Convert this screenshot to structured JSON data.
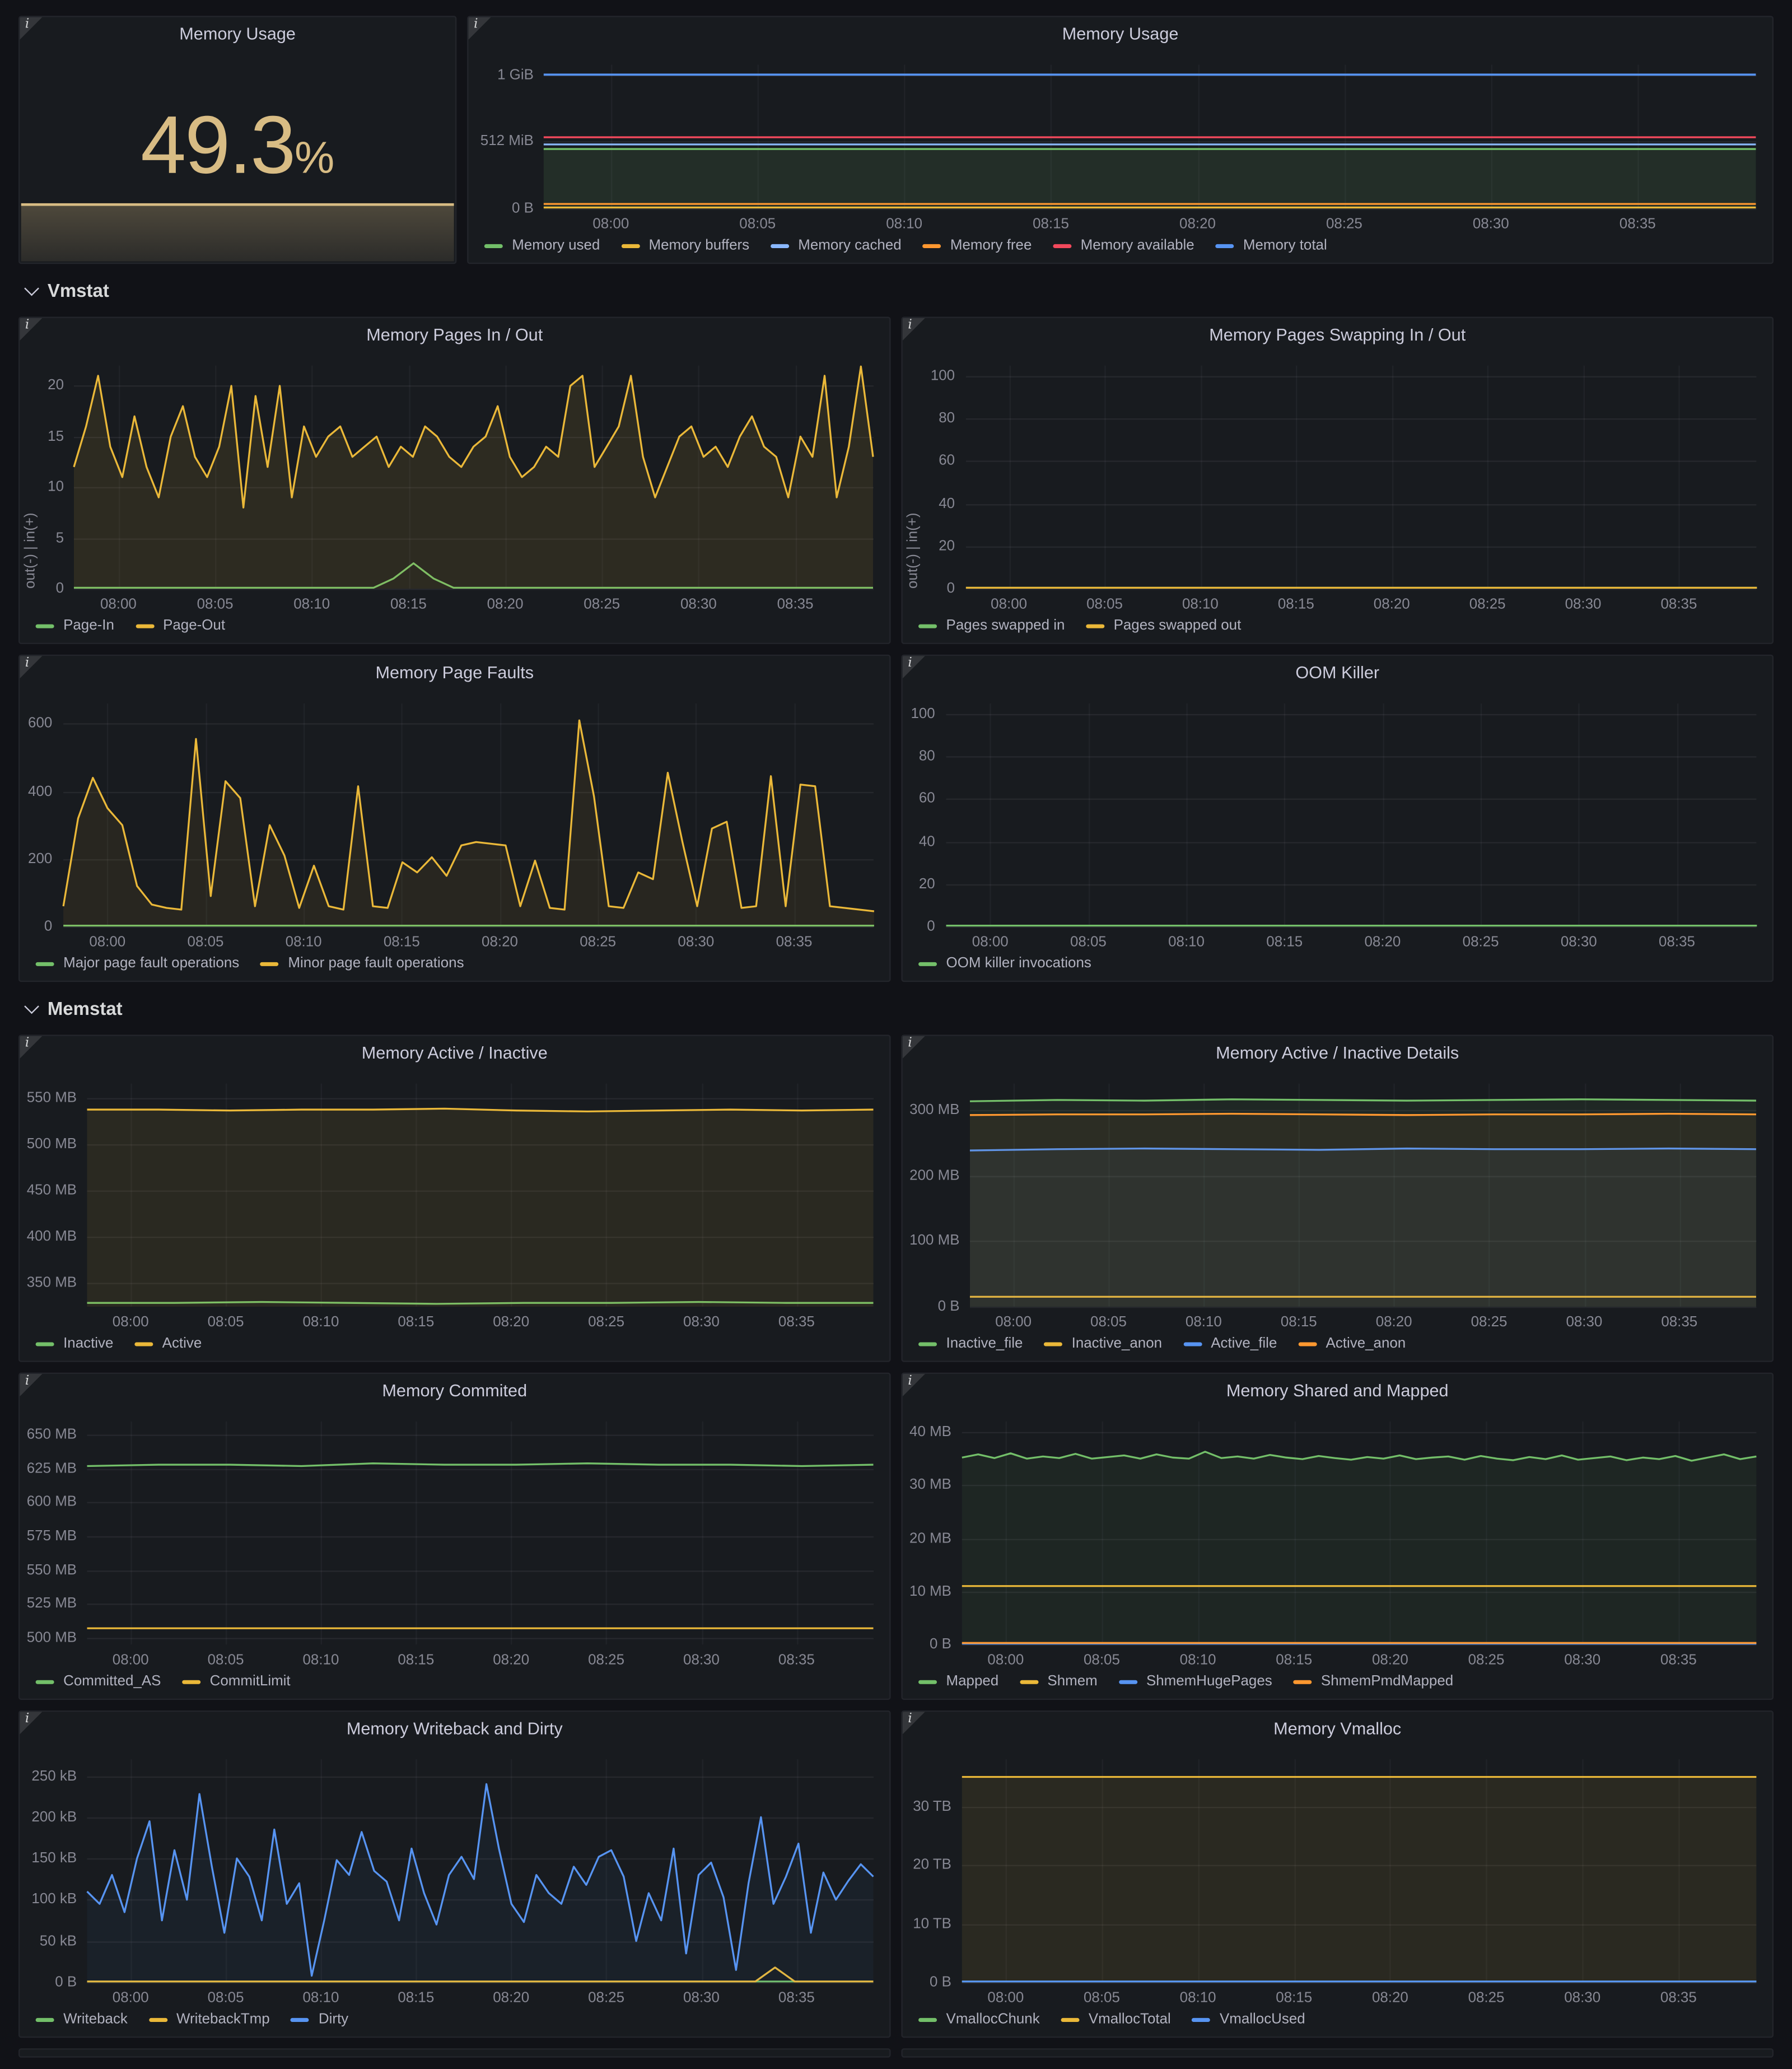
{
  "sections": {
    "vmstat": "Vmstat",
    "memstat": "Memstat"
  },
  "stat": {
    "title": "Memory Usage",
    "value": "49.3",
    "unit": "%",
    "color": "#d8bc84",
    "fraction": 0.493
  },
  "charts": {
    "usage": {
      "title": "Memory Usage",
      "y_min": 0,
      "y_max": 1100,
      "y_ticks": [
        [
          0,
          "0 B"
        ],
        [
          512,
          "512 MiB"
        ],
        [
          1024,
          "1 GiB"
        ]
      ],
      "x_ticks": [
        "08:00",
        "08:05",
        "08:10",
        "08:15",
        "08:20",
        "08:25",
        "08:30",
        "08:35"
      ],
      "series": [
        {
          "name": "Memory used",
          "color": "#73BF69",
          "fill": 0.12,
          "values": [
            455,
            455
          ]
        },
        {
          "name": "Memory buffers",
          "color": "#EAB839",
          "values": [
            8,
            8
          ]
        },
        {
          "name": "Memory cached",
          "color": "#8AB8FF",
          "values": [
            490,
            490
          ]
        },
        {
          "name": "Memory free",
          "color": "#FF9830",
          "values": [
            35,
            35
          ]
        },
        {
          "name": "Memory available",
          "color": "#F2495C",
          "values": [
            545,
            545
          ]
        },
        {
          "name": "Memory total",
          "color": "#5794F2",
          "width": 1.6,
          "values": [
            1024,
            1024
          ]
        }
      ]
    },
    "pages": {
      "title": "Memory Pages In / Out",
      "y_label": "out(-) | in(+)",
      "y_min": 0,
      "y_max": 22,
      "y_ticks": [
        [
          0,
          "0"
        ],
        [
          5,
          "5"
        ],
        [
          10,
          "10"
        ],
        [
          15,
          "15"
        ],
        [
          20,
          "20"
        ]
      ],
      "x_ticks": [
        "08:00",
        "08:05",
        "08:10",
        "08:15",
        "08:20",
        "08:25",
        "08:30",
        "08:35"
      ],
      "series": [
        {
          "name": "Page-In",
          "color": "#73BF69",
          "values": [
            0,
            0,
            0,
            0,
            0,
            0,
            0,
            0,
            0,
            0,
            0,
            0,
            0,
            0,
            0,
            0,
            1,
            2.5,
            1,
            0,
            0,
            0,
            0,
            0,
            0,
            0,
            0,
            0,
            0,
            0,
            0,
            0,
            0,
            0,
            0,
            0,
            0,
            0,
            0,
            0,
            0
          ]
        },
        {
          "name": "Page-Out",
          "color": "#EAB839",
          "fill": 0.1,
          "values": [
            12,
            16,
            21,
            14,
            11,
            17,
            12,
            9,
            15,
            18,
            13,
            11,
            14,
            20,
            8,
            19,
            12,
            20,
            9,
            16,
            13,
            15,
            16,
            13,
            14,
            15,
            12,
            14,
            13,
            16,
            15,
            13,
            12,
            14,
            15,
            18,
            13,
            11,
            12,
            14,
            13,
            20,
            21,
            12,
            14,
            16,
            21,
            13,
            9,
            12,
            15,
            16,
            13,
            14,
            12,
            15,
            17,
            14,
            13,
            9,
            15,
            13,
            21,
            9,
            14,
            22,
            13
          ]
        }
      ]
    },
    "swap": {
      "title": "Memory Pages Swapping In / Out",
      "y_label": "out(-) | in(+)",
      "y_min": 0,
      "y_max": 105,
      "y_ticks": [
        [
          0,
          "0"
        ],
        [
          20,
          "20"
        ],
        [
          40,
          "40"
        ],
        [
          60,
          "60"
        ],
        [
          80,
          "80"
        ],
        [
          100,
          "100"
        ]
      ],
      "x_ticks": [
        "08:00",
        "08:05",
        "08:10",
        "08:15",
        "08:20",
        "08:25",
        "08:30",
        "08:35"
      ],
      "series": [
        {
          "name": "Pages swapped in",
          "color": "#73BF69",
          "values": [
            0,
            0
          ]
        },
        {
          "name": "Pages swapped out",
          "color": "#EAB839",
          "values": [
            0,
            0
          ]
        }
      ]
    },
    "faults": {
      "title": "Memory Page Faults",
      "y_min": 0,
      "y_max": 660,
      "y_ticks": [
        [
          0,
          "0"
        ],
        [
          200,
          "200"
        ],
        [
          400,
          "400"
        ],
        [
          600,
          "600"
        ]
      ],
      "x_ticks": [
        "08:00",
        "08:05",
        "08:10",
        "08:15",
        "08:20",
        "08:25",
        "08:30",
        "08:35"
      ],
      "series": [
        {
          "name": "Major page fault operations",
          "color": "#73BF69",
          "values": [
            0,
            0
          ]
        },
        {
          "name": "Minor page fault operations",
          "color": "#EAB839",
          "fill": 0.08,
          "values": [
            60,
            320,
            440,
            350,
            300,
            120,
            65,
            55,
            50,
            555,
            90,
            430,
            380,
            60,
            300,
            210,
            55,
            180,
            60,
            50,
            415,
            60,
            55,
            190,
            160,
            205,
            150,
            240,
            250,
            245,
            240,
            60,
            195,
            55,
            50,
            610,
            385,
            60,
            55,
            160,
            140,
            455,
            250,
            60,
            290,
            310,
            55,
            60,
            445,
            60,
            420,
            415,
            60,
            55,
            50,
            45
          ]
        }
      ]
    },
    "oom": {
      "title": "OOM Killer",
      "y_min": 0,
      "y_max": 105,
      "y_ticks": [
        [
          0,
          "0"
        ],
        [
          20,
          "20"
        ],
        [
          40,
          "40"
        ],
        [
          60,
          "60"
        ],
        [
          80,
          "80"
        ],
        [
          100,
          "100"
        ]
      ],
      "x_ticks": [
        "08:00",
        "08:05",
        "08:10",
        "08:15",
        "08:20",
        "08:25",
        "08:30",
        "08:35"
      ],
      "series": [
        {
          "name": "OOM killer invocations",
          "color": "#73BF69",
          "values": [
            0,
            0
          ]
        }
      ]
    },
    "active": {
      "title": "Memory Active / Inactive",
      "y_min": 325,
      "y_max": 565,
      "y_ticks": [
        [
          350,
          "350 MB"
        ],
        [
          400,
          "400 MB"
        ],
        [
          450,
          "450 MB"
        ],
        [
          500,
          "500 MB"
        ],
        [
          550,
          "550 MB"
        ]
      ],
      "x_ticks": [
        "08:00",
        "08:05",
        "08:10",
        "08:15",
        "08:20",
        "08:25",
        "08:30",
        "08:35"
      ],
      "series": [
        {
          "name": "Inactive",
          "color": "#73BF69",
          "values": [
            329,
            329,
            330,
            329,
            328,
            329,
            329,
            330,
            329,
            329
          ]
        },
        {
          "name": "Active",
          "color": "#EAB839",
          "fill": 0.09,
          "values": [
            537,
            537,
            536,
            537,
            537,
            538,
            536,
            535,
            536,
            537,
            536,
            537
          ]
        }
      ]
    },
    "active_details": {
      "title": "Memory Active / Inactive Details",
      "y_min": 0,
      "y_max": 340,
      "y_ticks": [
        [
          0,
          "0 B"
        ],
        [
          100,
          "100 MB"
        ],
        [
          200,
          "200 MB"
        ],
        [
          300,
          "300 MB"
        ]
      ],
      "x_ticks": [
        "08:00",
        "08:05",
        "08:10",
        "08:15",
        "08:20",
        "08:25",
        "08:30",
        "08:35"
      ],
      "series": [
        {
          "name": "Inactive_file",
          "color": "#73BF69",
          "fill": 0.08,
          "values": [
            313,
            315,
            314,
            316,
            315,
            314,
            315,
            316,
            315,
            314
          ]
        },
        {
          "name": "Inactive_anon",
          "color": "#EAB839",
          "values": [
            15,
            15
          ]
        },
        {
          "name": "Active_file",
          "color": "#5794F2",
          "fill": 0.06,
          "values": [
            238,
            240,
            241,
            240,
            239,
            241,
            240,
            240,
            241,
            240
          ]
        },
        {
          "name": "Active_anon",
          "color": "#FF9830",
          "fill": 0.06,
          "values": [
            292,
            293,
            293,
            294,
            293,
            292,
            293,
            293,
            294,
            293
          ]
        }
      ]
    },
    "committed": {
      "title": "Memory Commited",
      "y_min": 495,
      "y_max": 660,
      "y_ticks": [
        [
          500,
          "500 MB"
        ],
        [
          525,
          "525 MB"
        ],
        [
          550,
          "550 MB"
        ],
        [
          575,
          "575 MB"
        ],
        [
          600,
          "600 MB"
        ],
        [
          625,
          "625 MB"
        ],
        [
          650,
          "650 MB"
        ]
      ],
      "x_ticks": [
        "08:00",
        "08:05",
        "08:10",
        "08:15",
        "08:20",
        "08:25",
        "08:30",
        "08:35"
      ],
      "series": [
        {
          "name": "Committed_AS",
          "color": "#73BF69",
          "values": [
            627,
            628,
            628,
            627,
            629,
            628,
            628,
            629,
            628,
            628,
            627,
            628
          ]
        },
        {
          "name": "CommitLimit",
          "color": "#EAB839",
          "values": [
            507,
            507
          ]
        }
      ]
    },
    "shared": {
      "title": "Memory Shared and Mapped",
      "y_min": 0,
      "y_max": 42,
      "y_ticks": [
        [
          0,
          "0 B"
        ],
        [
          10,
          "10 MB"
        ],
        [
          20,
          "20 MB"
        ],
        [
          30,
          "30 MB"
        ],
        [
          40,
          "40 MB"
        ]
      ],
      "x_ticks": [
        "08:00",
        "08:05",
        "08:10",
        "08:15",
        "08:20",
        "08:25",
        "08:30",
        "08:35"
      ],
      "series": [
        {
          "name": "Mapped",
          "color": "#73BF69",
          "fill": 0.07,
          "values": [
            35.2,
            35.8,
            35.1,
            36.0,
            35.0,
            35.4,
            35.1,
            35.9,
            35.0,
            35.3,
            35.6,
            35.0,
            35.8,
            35.2,
            35.0,
            36.3,
            35.1,
            35.4,
            35.0,
            35.7,
            35.2,
            34.9,
            35.5,
            35.1,
            34.8,
            35.3,
            35.0,
            35.6,
            34.9,
            35.2,
            35.4,
            34.8,
            35.5,
            35.0,
            34.7,
            35.3,
            34.9,
            35.6,
            34.8,
            35.1,
            35.4,
            34.7,
            35.2,
            34.9,
            35.5,
            34.6,
            35.2,
            35.8,
            34.9,
            35.4
          ]
        },
        {
          "name": "Shmem",
          "color": "#EAB839",
          "values": [
            11,
            11
          ]
        },
        {
          "name": "ShmemHugePages",
          "color": "#5794F2",
          "values": [
            0,
            0
          ]
        },
        {
          "name": "ShmemPmdMapped",
          "color": "#FF9830",
          "values": [
            0.3,
            0.3
          ]
        }
      ]
    },
    "writeback": {
      "title": "Memory Writeback and Dirty",
      "y_min": 0,
      "y_max": 270,
      "y_ticks": [
        [
          0,
          "0 B"
        ],
        [
          50,
          "50 kB"
        ],
        [
          100,
          "100 kB"
        ],
        [
          150,
          "150 kB"
        ],
        [
          200,
          "200 kB"
        ],
        [
          250,
          "250 kB"
        ]
      ],
      "x_ticks": [
        "08:00",
        "08:05",
        "08:10",
        "08:15",
        "08:20",
        "08:25",
        "08:30",
        "08:35"
      ],
      "series": [
        {
          "name": "Writeback",
          "color": "#73BF69",
          "values": [
            0,
            0
          ]
        },
        {
          "name": "WritebackTmp",
          "color": "#EAB839",
          "values": [
            0,
            0,
            0,
            0,
            0,
            0,
            0,
            0,
            0,
            0,
            0,
            0,
            0,
            0,
            0,
            0,
            0,
            0,
            0,
            0,
            0,
            0,
            0,
            0,
            0,
            0,
            0,
            0,
            0,
            0,
            0,
            0,
            0,
            0,
            0,
            18,
            0,
            0,
            0,
            0,
            0
          ]
        },
        {
          "name": "Dirty",
          "color": "#5794F2",
          "fill": 0.05,
          "values": [
            110,
            95,
            130,
            85,
            150,
            195,
            75,
            160,
            100,
            228,
            140,
            60,
            150,
            128,
            75,
            185,
            95,
            120,
            8,
            75,
            148,
            130,
            182,
            135,
            122,
            75,
            162,
            108,
            70,
            130,
            152,
            125,
            240,
            162,
            95,
            73,
            130,
            108,
            95,
            140,
            118,
            152,
            160,
            128,
            50,
            108,
            75,
            162,
            35,
            130,
            145,
            103,
            15,
            120,
            200,
            95,
            128,
            168,
            60,
            133,
            100,
            123,
            143,
            128
          ]
        }
      ]
    },
    "vmalloc": {
      "title": "Memory Vmalloc",
      "y_min": 0,
      "y_max": 38,
      "y_ticks": [
        [
          0,
          "0 B"
        ],
        [
          10,
          "10 TB"
        ],
        [
          20,
          "20 TB"
        ],
        [
          30,
          "30 TB"
        ]
      ],
      "x_ticks": [
        "08:00",
        "08:05",
        "08:10",
        "08:15",
        "08:20",
        "08:25",
        "08:30",
        "08:35"
      ],
      "series": [
        {
          "name": "VmallocChunk",
          "color": "#73BF69",
          "values": [
            0,
            0
          ]
        },
        {
          "name": "VmallocTotal",
          "color": "#EAB839",
          "fill": 0.09,
          "values": [
            35,
            35
          ]
        },
        {
          "name": "VmallocUsed",
          "color": "#5794F2",
          "values": [
            0.05,
            0.05
          ]
        }
      ]
    }
  }
}
